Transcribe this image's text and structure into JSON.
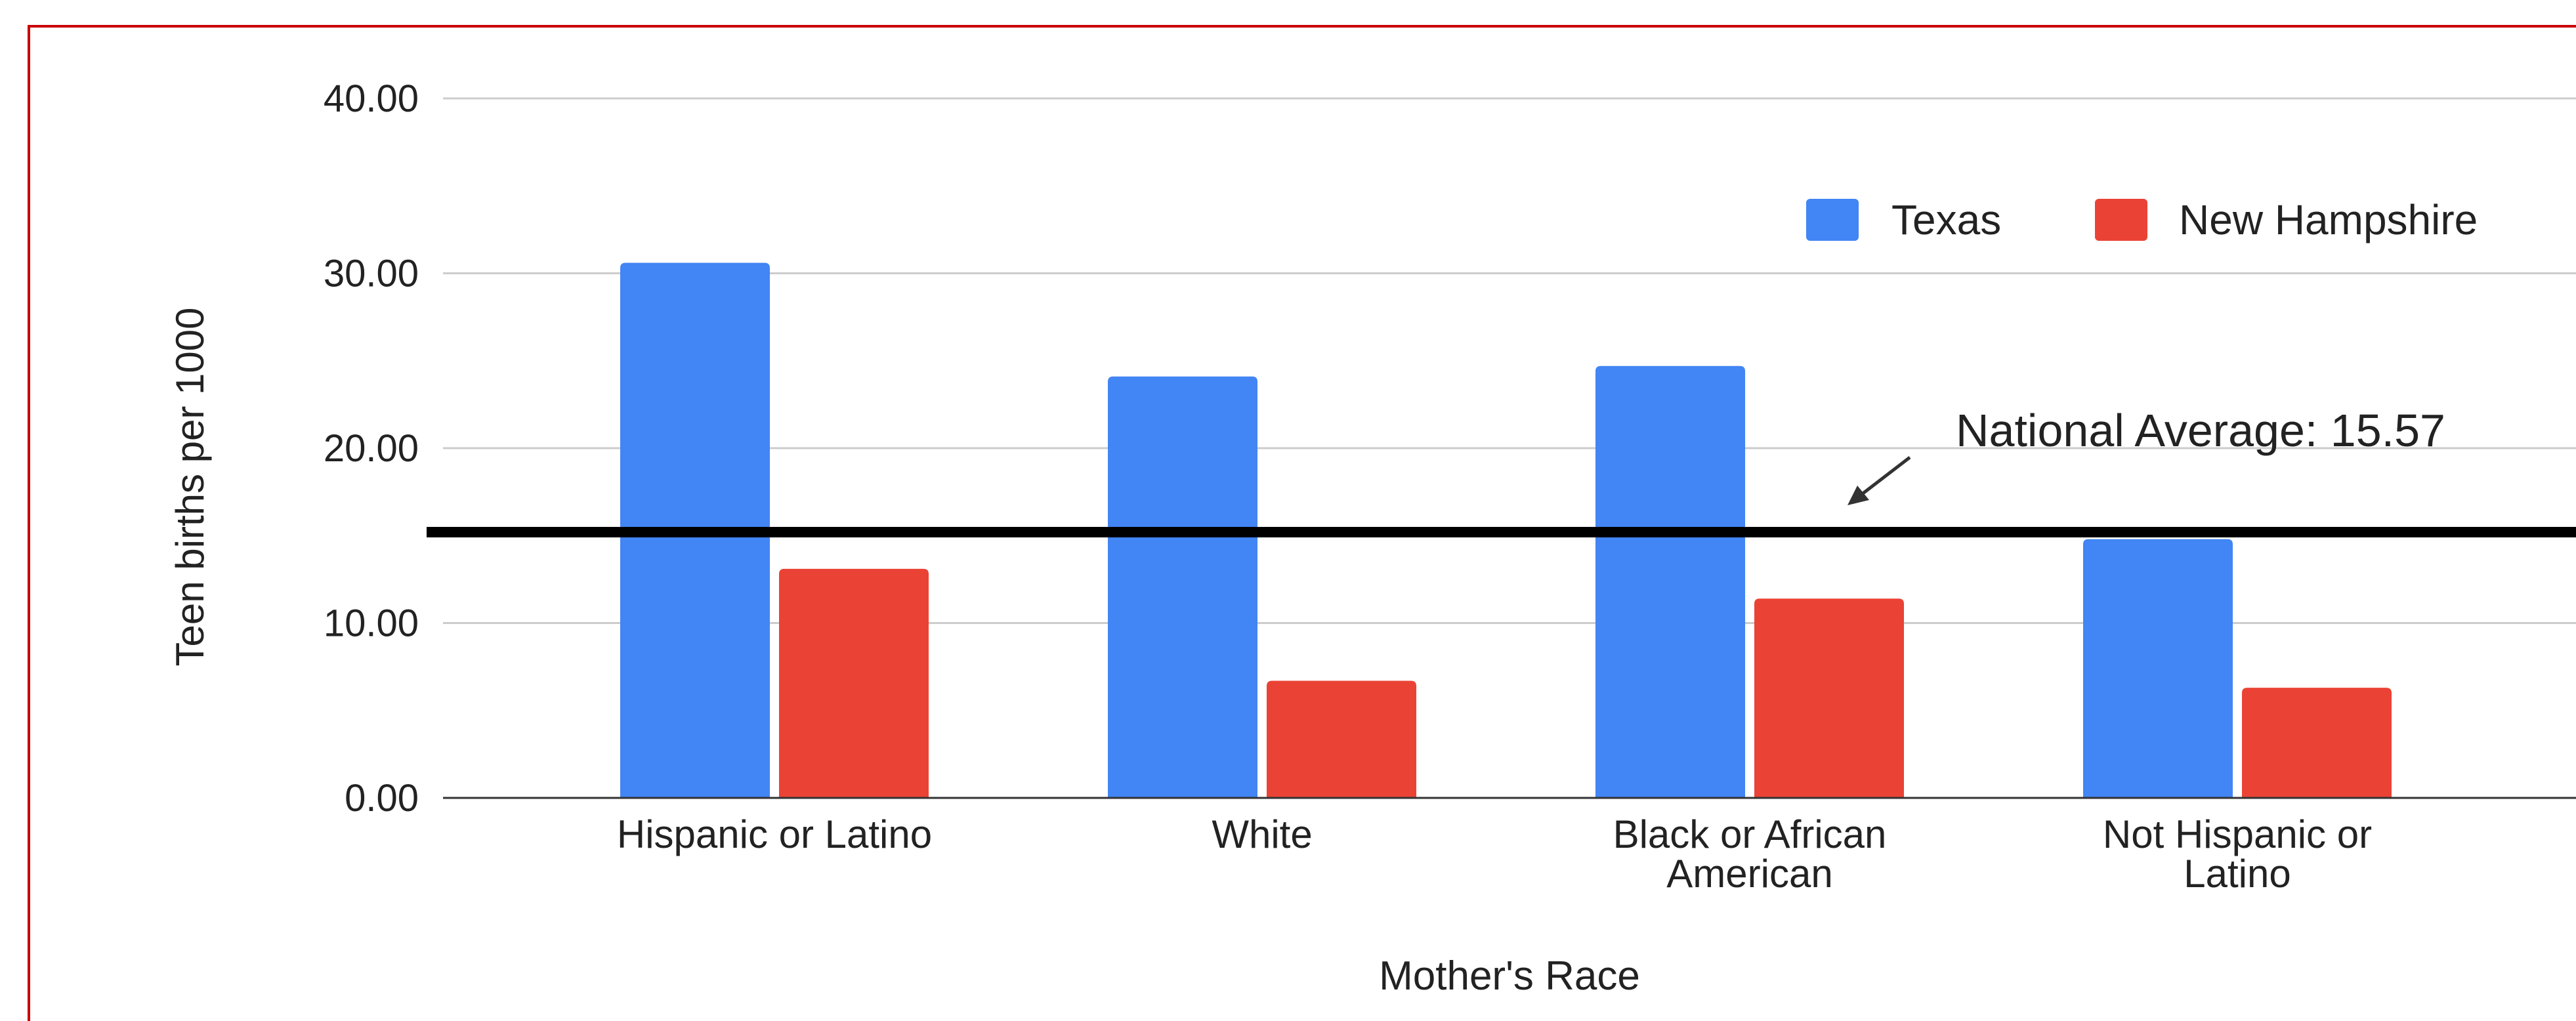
{
  "chart_data": {
    "type": "bar",
    "xlabel": "Mother's Race",
    "ylabel": "Teen births per 1000",
    "ylim": [
      0,
      40
    ],
    "y_ticks": [
      "0.00",
      "10.00",
      "20.00",
      "30.00",
      "40.00"
    ],
    "y_tick_values": [
      0,
      10,
      20,
      30,
      40
    ],
    "categories": [
      [
        "Hispanic or Latino"
      ],
      [
        "White"
      ],
      [
        "Black or African",
        "American"
      ],
      [
        "Not Hispanic or",
        "Latino"
      ]
    ],
    "series": [
      {
        "name": "Texas",
        "color": "#4285F4",
        "values": [
          30.6,
          24.1,
          24.7,
          14.8
        ]
      },
      {
        "name": "New Hampshire",
        "color": "#EA4335",
        "values": [
          13.1,
          6.7,
          11.4,
          6.3
        ]
      }
    ],
    "reference_line": {
      "value": 15.57,
      "label": "National Average: 15.57",
      "color": "#000000"
    },
    "legend_position": "top-right",
    "grid": true
  },
  "colors": {
    "frame_border": "#CC0000",
    "gridline": "#CCCCCC",
    "axis": "#333333"
  }
}
